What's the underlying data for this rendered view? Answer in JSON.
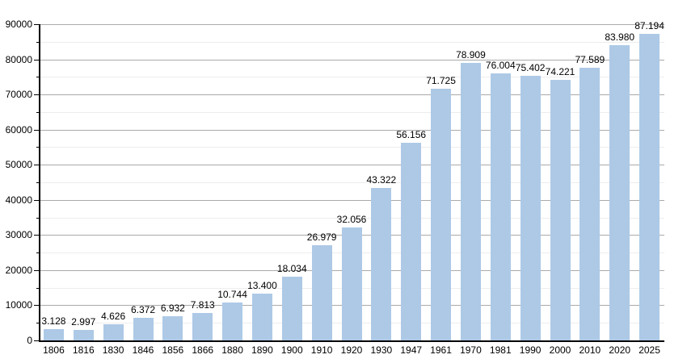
{
  "chart_data": {
    "type": "bar",
    "title": "",
    "xlabel": "",
    "ylabel": "",
    "categories": [
      "1806",
      "1816",
      "1830",
      "1846",
      "1856",
      "1866",
      "1880",
      "1890",
      "1900",
      "1910",
      "1920",
      "1930",
      "1947",
      "1961",
      "1970",
      "1981",
      "1990",
      "2000",
      "2010",
      "2020",
      "2025"
    ],
    "values": [
      3128,
      2997,
      4626,
      6372,
      6932,
      7813,
      10744,
      13400,
      18034,
      26979,
      32056,
      43322,
      56156,
      71725,
      78909,
      76004,
      75402,
      74221,
      77589,
      83980,
      87194
    ],
    "value_labels": [
      "3.128",
      "2.997",
      "4.626",
      "6.372",
      "6.932",
      "7.813",
      "10.744",
      "13.400",
      "18.034",
      "26.979",
      "32.056",
      "43.322",
      "56.156",
      "71.725",
      "78.909",
      "76.004",
      "75.402",
      "74.221",
      "77.589",
      "83.980",
      "87.194"
    ],
    "ylim": [
      0,
      90000
    ],
    "y_major_step": 10000,
    "y_minor_step": 5000,
    "y_tick_labels": [
      "0",
      "10000",
      "20000",
      "30000",
      "40000",
      "50000",
      "60000",
      "70000",
      "80000",
      "90000"
    ],
    "grid": "on",
    "legend_position": "none",
    "colors": {
      "bar_fill": "#adc9e6",
      "grid_major": "#aaaaaa",
      "grid_minor": "#ededed",
      "axis": "#000000",
      "text": "#000000",
      "background": "#ffffff"
    }
  }
}
